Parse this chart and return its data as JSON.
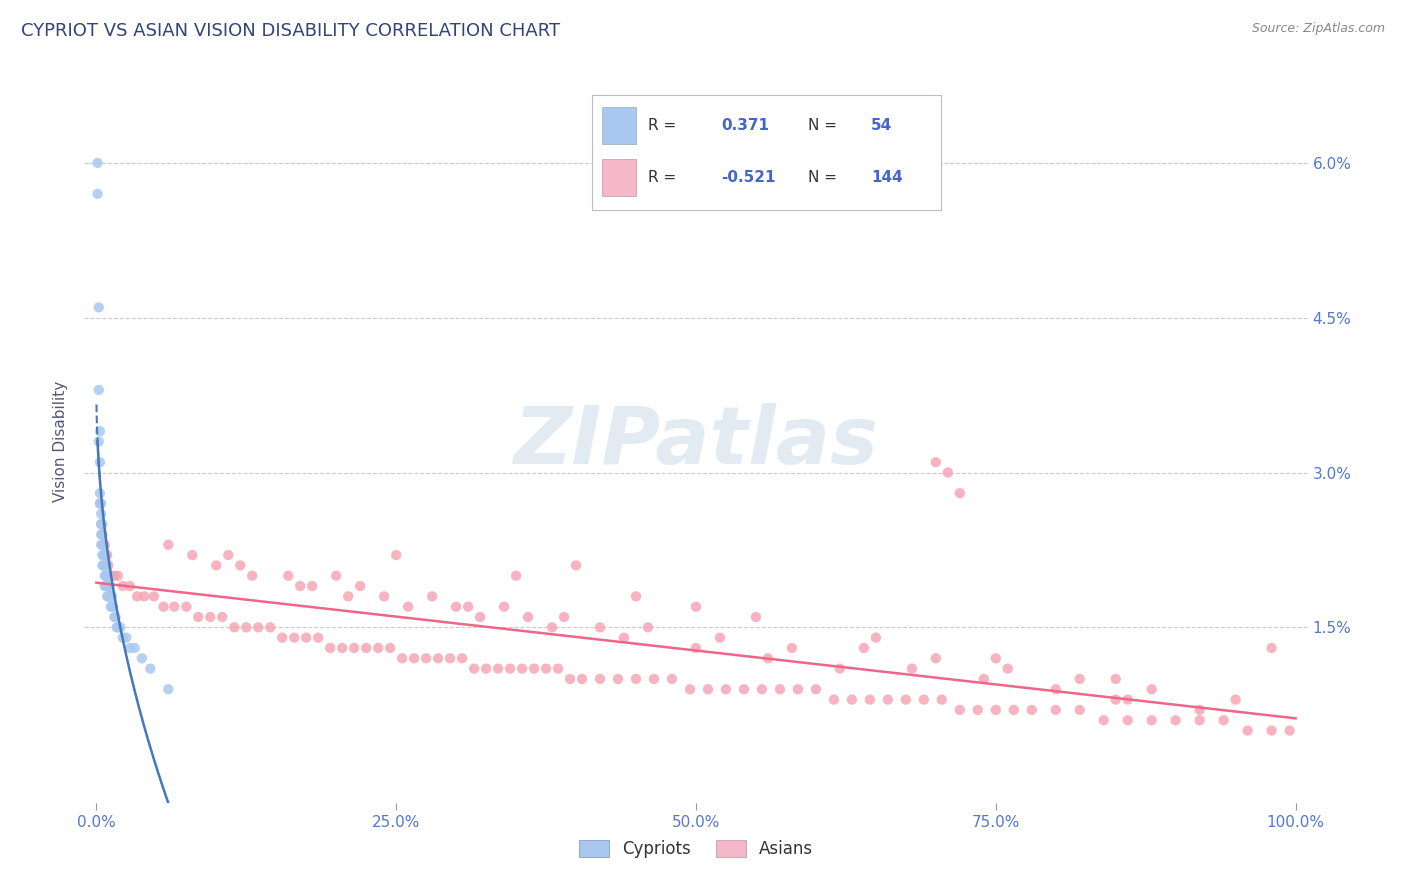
{
  "title": "CYPRIOT VS ASIAN VISION DISABILITY CORRELATION CHART",
  "source": "Source: ZipAtlas.com",
  "ylabel": "Vision Disability",
  "xlim": [
    -0.01,
    1.01
  ],
  "ylim": [
    -0.002,
    0.068
  ],
  "yticks": [
    0.015,
    0.03,
    0.045,
    0.06
  ],
  "ytick_labels": [
    "1.5%",
    "3.0%",
    "4.5%",
    "6.0%"
  ],
  "xticks": [
    0.0,
    0.25,
    0.5,
    0.75,
    1.0
  ],
  "xtick_labels": [
    "0.0%",
    "25.0%",
    "50.0%",
    "75.0%",
    "100.0%"
  ],
  "cypriot_legend_color": "#a8c8f0",
  "asian_legend_color": "#f5b8c8",
  "cypriot_scatter_color": "#a8c8f0",
  "asian_scatter_color": "#f5a0b0",
  "trend_blue": "#4477bb",
  "trend_pink": "#ee6688",
  "background_color": "#ffffff",
  "grid_color": "#cccccc",
  "title_color": "#334477",
  "axis_label_color": "#555577",
  "tick_label_color": "#5577cc",
  "watermark_color": "#dde8f0",
  "legend_text_dark": "#333333",
  "legend_text_blue": "#4466cc",
  "cypriot_x": [
    0.001,
    0.001,
    0.002,
    0.002,
    0.002,
    0.003,
    0.003,
    0.003,
    0.003,
    0.004,
    0.004,
    0.004,
    0.004,
    0.004,
    0.005,
    0.005,
    0.005,
    0.005,
    0.005,
    0.006,
    0.006,
    0.006,
    0.007,
    0.007,
    0.007,
    0.007,
    0.008,
    0.008,
    0.008,
    0.009,
    0.009,
    0.009,
    0.01,
    0.01,
    0.01,
    0.011,
    0.011,
    0.012,
    0.012,
    0.013,
    0.013,
    0.014,
    0.015,
    0.016,
    0.017,
    0.018,
    0.02,
    0.022,
    0.025,
    0.028,
    0.032,
    0.038,
    0.045,
    0.06
  ],
  "cypriot_y": [
    0.06,
    0.057,
    0.046,
    0.038,
    0.033,
    0.034,
    0.031,
    0.028,
    0.027,
    0.027,
    0.026,
    0.025,
    0.024,
    0.023,
    0.025,
    0.024,
    0.023,
    0.022,
    0.021,
    0.023,
    0.022,
    0.021,
    0.022,
    0.021,
    0.02,
    0.019,
    0.021,
    0.02,
    0.019,
    0.02,
    0.019,
    0.018,
    0.02,
    0.019,
    0.018,
    0.019,
    0.018,
    0.018,
    0.017,
    0.018,
    0.017,
    0.017,
    0.016,
    0.016,
    0.015,
    0.015,
    0.015,
    0.014,
    0.014,
    0.013,
    0.013,
    0.012,
    0.011,
    0.009
  ],
  "asian_x": [
    0.003,
    0.004,
    0.005,
    0.006,
    0.007,
    0.008,
    0.009,
    0.01,
    0.012,
    0.015,
    0.018,
    0.022,
    0.028,
    0.034,
    0.04,
    0.048,
    0.056,
    0.065,
    0.075,
    0.085,
    0.095,
    0.105,
    0.115,
    0.125,
    0.135,
    0.145,
    0.155,
    0.165,
    0.175,
    0.185,
    0.195,
    0.205,
    0.215,
    0.225,
    0.235,
    0.245,
    0.255,
    0.265,
    0.275,
    0.285,
    0.295,
    0.305,
    0.315,
    0.325,
    0.335,
    0.345,
    0.355,
    0.365,
    0.375,
    0.385,
    0.395,
    0.405,
    0.42,
    0.435,
    0.45,
    0.465,
    0.48,
    0.495,
    0.51,
    0.525,
    0.54,
    0.555,
    0.57,
    0.585,
    0.6,
    0.615,
    0.63,
    0.645,
    0.66,
    0.675,
    0.69,
    0.705,
    0.72,
    0.735,
    0.75,
    0.765,
    0.78,
    0.8,
    0.82,
    0.84,
    0.86,
    0.88,
    0.9,
    0.92,
    0.94,
    0.96,
    0.98,
    0.995,
    0.12,
    0.18,
    0.24,
    0.3,
    0.36,
    0.42,
    0.2,
    0.28,
    0.34,
    0.11,
    0.16,
    0.22,
    0.31,
    0.39,
    0.46,
    0.52,
    0.58,
    0.64,
    0.7,
    0.76,
    0.82,
    0.88,
    0.06,
    0.08,
    0.1,
    0.13,
    0.17,
    0.21,
    0.26,
    0.32,
    0.38,
    0.44,
    0.5,
    0.56,
    0.62,
    0.68,
    0.74,
    0.8,
    0.86,
    0.92,
    0.25,
    0.35,
    0.45,
    0.55,
    0.65,
    0.75,
    0.85,
    0.95,
    0.7,
    0.72,
    0.71,
    0.98,
    0.85,
    0.4,
    0.5
  ],
  "asian_y": [
    0.027,
    0.025,
    0.024,
    0.023,
    0.023,
    0.022,
    0.022,
    0.021,
    0.02,
    0.02,
    0.02,
    0.019,
    0.019,
    0.018,
    0.018,
    0.018,
    0.017,
    0.017,
    0.017,
    0.016,
    0.016,
    0.016,
    0.015,
    0.015,
    0.015,
    0.015,
    0.014,
    0.014,
    0.014,
    0.014,
    0.013,
    0.013,
    0.013,
    0.013,
    0.013,
    0.013,
    0.012,
    0.012,
    0.012,
    0.012,
    0.012,
    0.012,
    0.011,
    0.011,
    0.011,
    0.011,
    0.011,
    0.011,
    0.011,
    0.011,
    0.01,
    0.01,
    0.01,
    0.01,
    0.01,
    0.01,
    0.01,
    0.009,
    0.009,
    0.009,
    0.009,
    0.009,
    0.009,
    0.009,
    0.009,
    0.008,
    0.008,
    0.008,
    0.008,
    0.008,
    0.008,
    0.008,
    0.007,
    0.007,
    0.007,
    0.007,
    0.007,
    0.007,
    0.007,
    0.006,
    0.006,
    0.006,
    0.006,
    0.006,
    0.006,
    0.005,
    0.005,
    0.005,
    0.021,
    0.019,
    0.018,
    0.017,
    0.016,
    0.015,
    0.02,
    0.018,
    0.017,
    0.022,
    0.02,
    0.019,
    0.017,
    0.016,
    0.015,
    0.014,
    0.013,
    0.013,
    0.012,
    0.011,
    0.01,
    0.009,
    0.023,
    0.022,
    0.021,
    0.02,
    0.019,
    0.018,
    0.017,
    0.016,
    0.015,
    0.014,
    0.013,
    0.012,
    0.011,
    0.011,
    0.01,
    0.009,
    0.008,
    0.007,
    0.022,
    0.02,
    0.018,
    0.016,
    0.014,
    0.012,
    0.01,
    0.008,
    0.031,
    0.028,
    0.03,
    0.013,
    0.008,
    0.021,
    0.017
  ]
}
